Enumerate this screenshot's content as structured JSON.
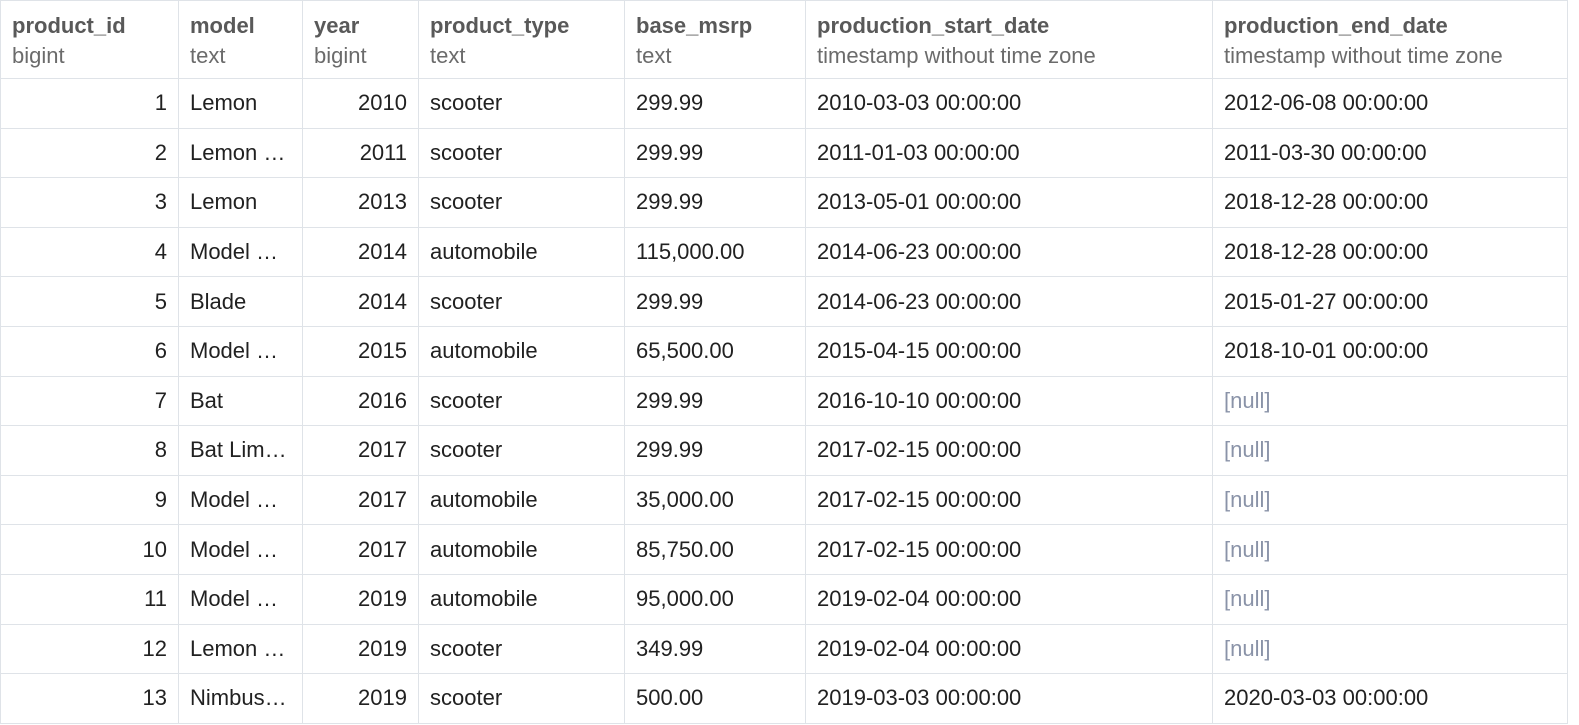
{
  "columns": [
    {
      "name": "product_id",
      "type": "bigint",
      "align": "right"
    },
    {
      "name": "model",
      "type": "text",
      "align": "left"
    },
    {
      "name": "year",
      "type": "bigint",
      "align": "right"
    },
    {
      "name": "product_type",
      "type": "text",
      "align": "left"
    },
    {
      "name": "base_msrp",
      "type": "text",
      "align": "left"
    },
    {
      "name": "production_start_date",
      "type": "timestamp without time zone",
      "align": "left"
    },
    {
      "name": "production_end_date",
      "type": "timestamp without time zone",
      "align": "left"
    }
  ],
  "null_label": "[null]",
  "rows": [
    [
      "1",
      "Lemon",
      "2010",
      "scooter",
      "299.99",
      "2010-03-03 00:00:00",
      "2012-06-08 00:00:00"
    ],
    [
      "2",
      "Lemon …",
      "2011",
      "scooter",
      "299.99",
      "2011-01-03 00:00:00",
      "2011-03-30 00:00:00"
    ],
    [
      "3",
      "Lemon",
      "2013",
      "scooter",
      "299.99",
      "2013-05-01 00:00:00",
      "2018-12-28 00:00:00"
    ],
    [
      "4",
      "Model …",
      "2014",
      "automobile",
      "115,000.00",
      "2014-06-23 00:00:00",
      "2018-12-28 00:00:00"
    ],
    [
      "5",
      "Blade",
      "2014",
      "scooter",
      "299.99",
      "2014-06-23 00:00:00",
      "2015-01-27 00:00:00"
    ],
    [
      "6",
      "Model S…",
      "2015",
      "automobile",
      "65,500.00",
      "2015-04-15 00:00:00",
      "2018-10-01 00:00:00"
    ],
    [
      "7",
      "Bat",
      "2016",
      "scooter",
      "299.99",
      "2016-10-10 00:00:00",
      null
    ],
    [
      "8",
      "Bat Limi…",
      "2017",
      "scooter",
      "299.99",
      "2017-02-15 00:00:00",
      null
    ],
    [
      "9",
      "Model E…",
      "2017",
      "automobile",
      "35,000.00",
      "2017-02-15 00:00:00",
      null
    ],
    [
      "10",
      "Model …",
      "2017",
      "automobile",
      "85,750.00",
      "2017-02-15 00:00:00",
      null
    ],
    [
      "11",
      "Model …",
      "2019",
      "automobile",
      "95,000.00",
      "2019-02-04 00:00:00",
      null
    ],
    [
      "12",
      "Lemon …",
      "2019",
      "scooter",
      "349.99",
      "2019-02-04 00:00:00",
      null
    ],
    [
      "13",
      "Nimbus…",
      "2019",
      "scooter",
      "500.00",
      "2019-03-03 00:00:00",
      "2020-03-03 00:00:00"
    ]
  ],
  "colors": {
    "grid_line": "#dfe3e8",
    "header_text": "#595959",
    "null_text": "#8a93a8"
  }
}
